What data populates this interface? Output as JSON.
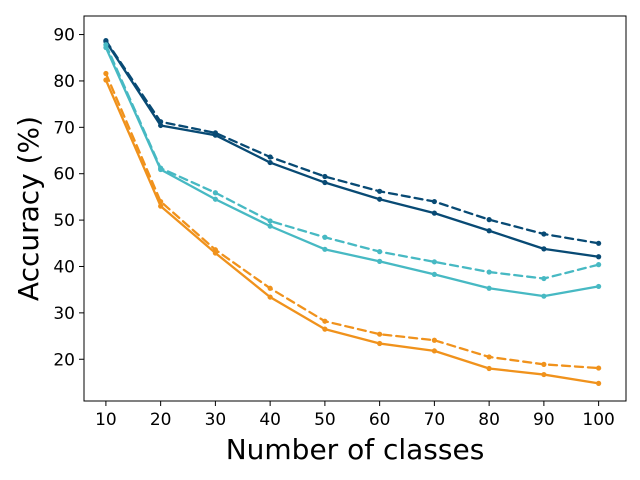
{
  "chart_data": {
    "type": "line",
    "xlabel": "Number of classes",
    "ylabel": "Accuracy (%)",
    "xlim": [
      6,
      105
    ],
    "ylim": [
      11,
      94
    ],
    "x": [
      10,
      20,
      30,
      40,
      50,
      60,
      70,
      80,
      90,
      100
    ],
    "xticks": [
      "10",
      "20",
      "30",
      "40",
      "50",
      "60",
      "70",
      "80",
      "90",
      "100"
    ],
    "yticks": [
      "20",
      "30",
      "40",
      "50",
      "60",
      "70",
      "80",
      "90"
    ],
    "grid": false,
    "legend": "none",
    "series": [
      {
        "color": "#084a74",
        "linestyle": "dashed",
        "values": [
          88.7,
          71.2,
          68.8,
          63.6,
          59.4,
          56.2,
          54.0,
          50.1,
          47.0,
          45.0
        ]
      },
      {
        "color": "#084a74",
        "linestyle": "solid",
        "values": [
          88.5,
          70.4,
          68.3,
          62.4,
          58.1,
          54.5,
          51.5,
          47.7,
          43.8,
          42.1
        ]
      },
      {
        "color": "#47b9c3",
        "linestyle": "dashed",
        "values": [
          87.8,
          61.2,
          55.9,
          49.8,
          46.3,
          43.2,
          41.0,
          38.8,
          37.4,
          40.4
        ]
      },
      {
        "color": "#47b9c3",
        "linestyle": "solid",
        "values": [
          87.2,
          60.9,
          54.5,
          48.7,
          43.7,
          41.1,
          38.3,
          35.3,
          33.6,
          35.7
        ]
      },
      {
        "color": "#f0921c",
        "linestyle": "dashed",
        "values": [
          81.6,
          54.0,
          43.6,
          35.3,
          28.2,
          25.4,
          24.1,
          20.5,
          18.9,
          18.1
        ]
      },
      {
        "color": "#f0921c",
        "linestyle": "solid",
        "values": [
          80.2,
          53.0,
          42.9,
          33.4,
          26.5,
          23.4,
          21.8,
          18.0,
          16.7,
          14.8
        ]
      }
    ]
  }
}
